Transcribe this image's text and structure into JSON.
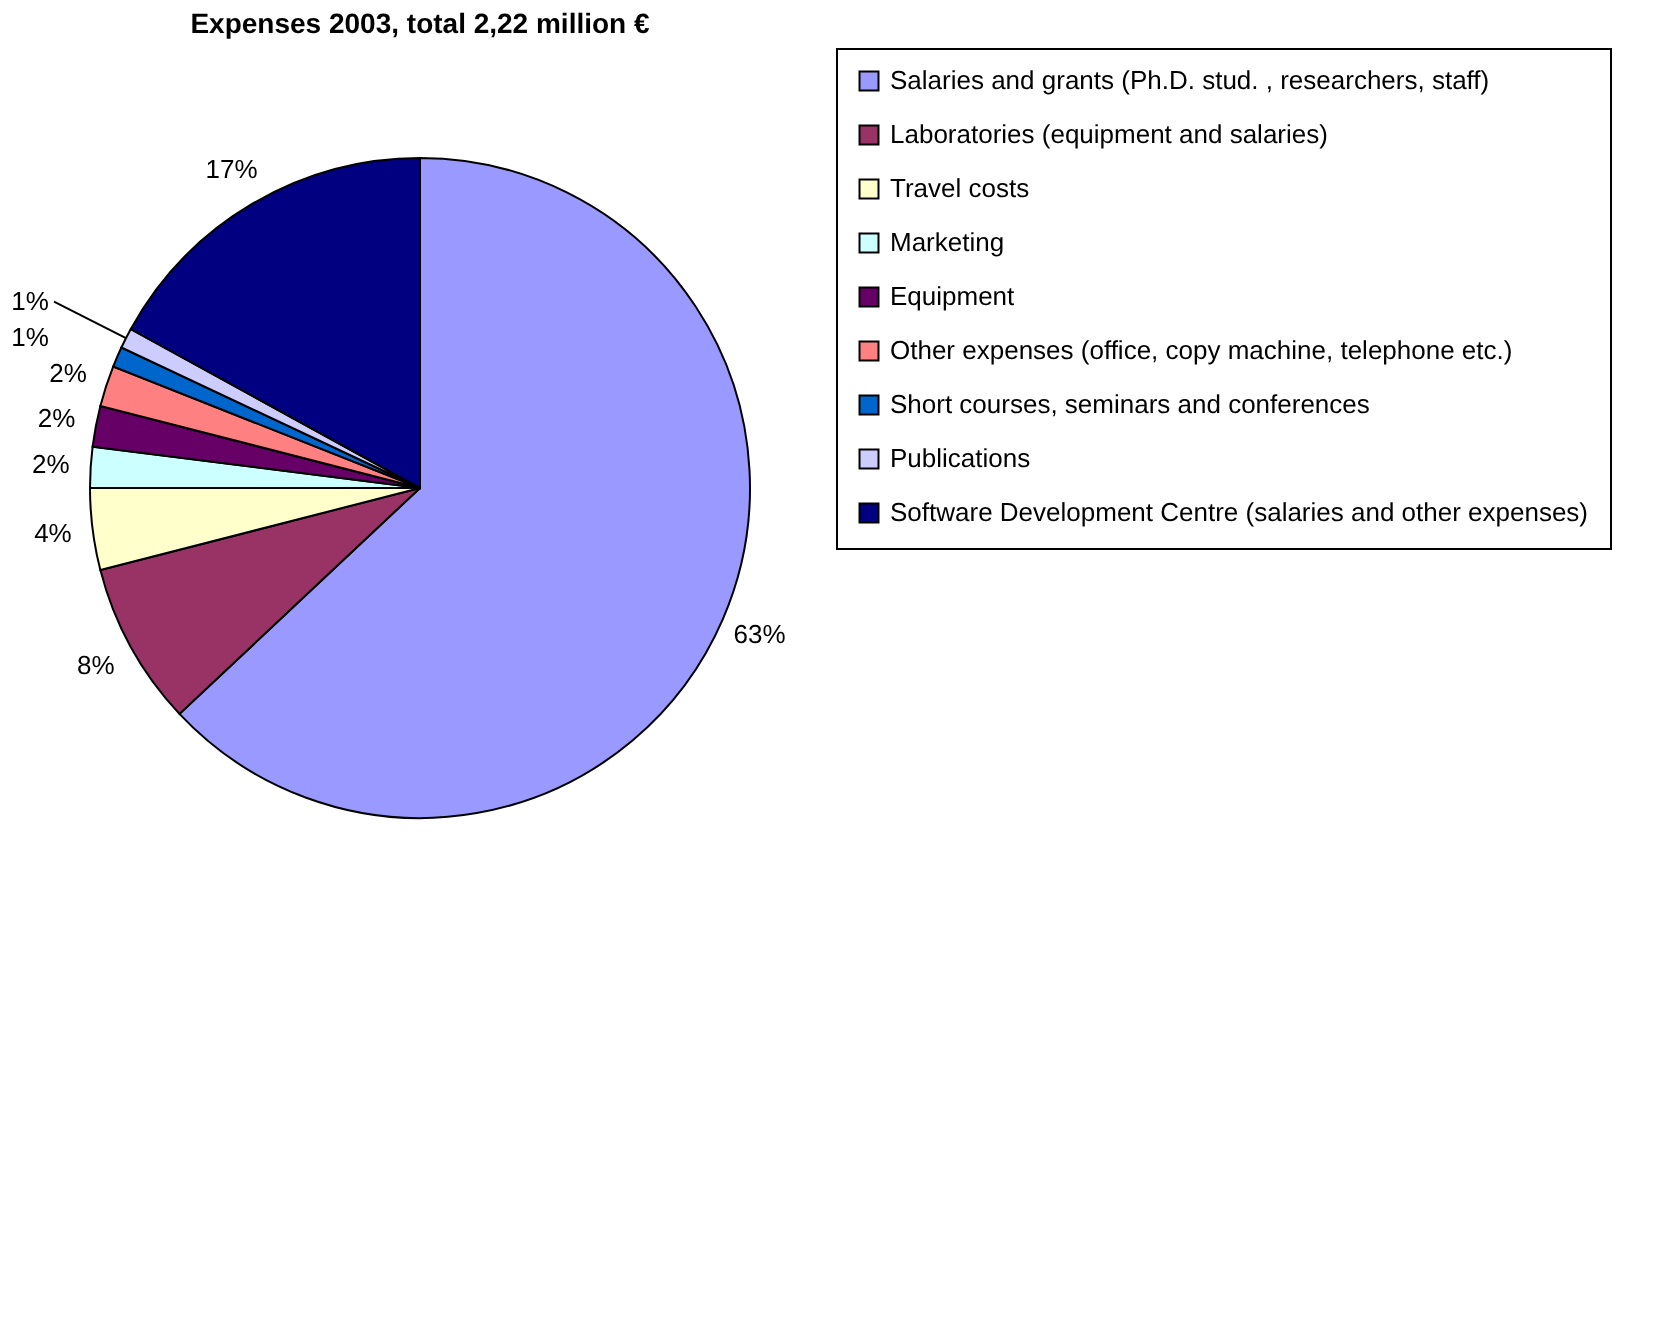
{
  "chart_data": {
    "type": "pie",
    "title": "Expenses 2003, total 2,22 million €",
    "categories": [
      "Salaries and grants (Ph.D. stud. , researchers, staff)",
      "Laboratories (equipment and salaries)",
      "Travel costs",
      "Marketing",
      "Equipment",
      "Other expenses (office, copy machine, telephone etc.)",
      "Short courses, seminars and conferences",
      "Publications",
      "Software Development Centre (salaries and other expenses)"
    ],
    "values": [
      63,
      8,
      4,
      2,
      2,
      2,
      1,
      1,
      17
    ],
    "colors": [
      "#9999ff",
      "#993366",
      "#ffffcc",
      "#ccffff",
      "#660066",
      "#ff8080",
      "#0066cc",
      "#ccccff",
      "#000080"
    ],
    "value_labels": [
      "63%",
      "8%",
      "4%",
      "2%",
      "2%",
      "2%",
      "1%",
      "1%",
      "17%"
    ],
    "legend": "right"
  }
}
